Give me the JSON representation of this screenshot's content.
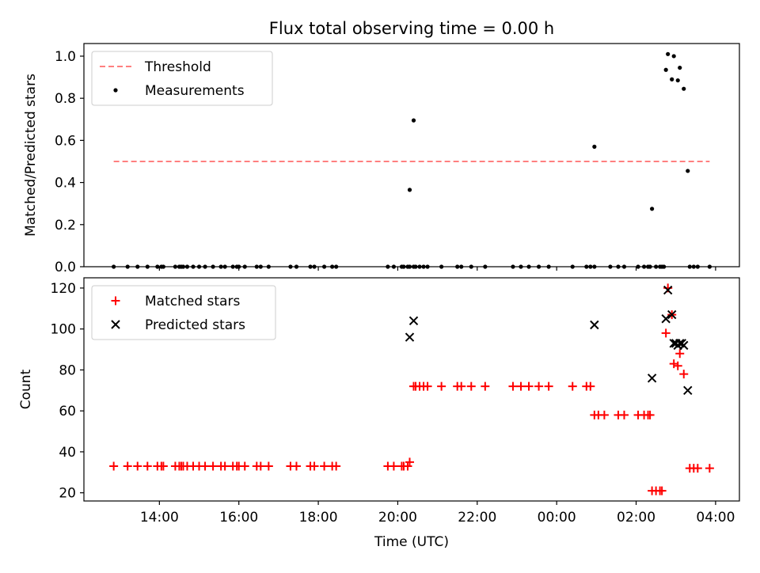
{
  "figure": {
    "title": "Flux total observing time = 0.00 h"
  },
  "chart_data": [
    {
      "type": "scatter",
      "xlabel": "",
      "ylabel": "Matched/Predicted stars",
      "x_unit": "hours since 00:00 UTC of first day",
      "xlim": [
        12.1,
        28.6
      ],
      "ylim": [
        0,
        1.06
      ],
      "yticks": [
        0,
        0.2,
        0.4,
        0.6,
        0.8,
        1.0
      ],
      "ytick_labels": [
        "0.0",
        "0.2",
        "0.4",
        "0.6",
        "0.8",
        "1.0"
      ],
      "legend": {
        "position": "top-left",
        "entries": [
          "Threshold",
          "Measurements"
        ]
      },
      "threshold": {
        "name": "Threshold",
        "value": 0.5,
        "x_start": 12.85,
        "x_end": 27.85,
        "color": "#ff7f7f"
      },
      "series": [
        {
          "name": "Measurements",
          "marker": "dot",
          "color": "#000000",
          "x": [
            12.85,
            13.2,
            13.45,
            13.7,
            13.95,
            14.05,
            14.1,
            14.4,
            14.5,
            14.55,
            14.6,
            14.7,
            14.85,
            15.0,
            15.15,
            15.35,
            15.55,
            15.65,
            15.85,
            15.95,
            16.0,
            16.15,
            16.45,
            16.55,
            16.75,
            17.3,
            17.45,
            17.8,
            17.9,
            18.15,
            18.35,
            18.45,
            19.75,
            19.9,
            20.1,
            20.15,
            20.25,
            20.3,
            20.4,
            20.45,
            20.55,
            20.65,
            20.75,
            21.1,
            21.5,
            21.6,
            21.85,
            22.2,
            22.9,
            23.1,
            23.3,
            23.55,
            23.8,
            24.4,
            24.75,
            24.85,
            24.95,
            25.35,
            25.55,
            25.7,
            26.05,
            26.2,
            26.3,
            26.35,
            26.5,
            26.6,
            26.65,
            26.7,
            27.35,
            27.45,
            27.55,
            27.85,
            20.3,
            20.4,
            24.95,
            26.4,
            26.75,
            26.8,
            26.9,
            26.95,
            27.05,
            27.1,
            27.2,
            27.3
          ],
          "y": [
            0,
            0,
            0,
            0,
            0,
            0,
            0,
            0,
            0,
            0,
            0,
            0,
            0,
            0,
            0,
            0,
            0,
            0,
            0,
            0,
            0,
            0,
            0,
            0,
            0,
            0,
            0,
            0,
            0,
            0,
            0,
            0,
            0,
            0,
            0,
            0,
            0,
            0,
            0,
            0,
            0,
            0,
            0,
            0,
            0,
            0,
            0,
            0,
            0,
            0,
            0,
            0,
            0,
            0,
            0,
            0,
            0,
            0,
            0,
            0,
            0,
            0,
            0,
            0,
            0,
            0,
            0,
            0,
            0,
            0,
            0,
            0,
            0.365,
            0.695,
            0.57,
            0.275,
            0.935,
            1.01,
            0.89,
            1.0,
            0.885,
            0.945,
            0.845,
            0.455
          ]
        }
      ]
    },
    {
      "type": "scatter",
      "xlabel": "Time (UTC)",
      "ylabel": "Count",
      "x_unit": "hours since 00:00 UTC of first day",
      "xlim": [
        12.1,
        28.6
      ],
      "ylim": [
        16,
        125
      ],
      "xticks": [
        14,
        16,
        18,
        20,
        22,
        24,
        26,
        28
      ],
      "xtick_labels": [
        "14:00",
        "16:00",
        "18:00",
        "20:00",
        "22:00",
        "00:00",
        "02:00",
        "04:00"
      ],
      "yticks": [
        20,
        40,
        60,
        80,
        100,
        120
      ],
      "ytick_labels": [
        "20",
        "40",
        "60",
        "80",
        "100",
        "120"
      ],
      "legend": {
        "position": "top-left",
        "entries": [
          "Matched stars",
          "Predicted stars"
        ]
      },
      "series": [
        {
          "name": "Matched stars",
          "marker": "plus",
          "color": "#ff0000",
          "x": [
            12.85,
            13.2,
            13.45,
            13.7,
            13.95,
            14.05,
            14.1,
            14.4,
            14.5,
            14.55,
            14.6,
            14.7,
            14.85,
            15.0,
            15.15,
            15.35,
            15.55,
            15.65,
            15.85,
            15.95,
            16.0,
            16.15,
            16.45,
            16.55,
            16.75,
            17.3,
            17.45,
            17.8,
            17.9,
            18.15,
            18.35,
            18.45,
            19.75,
            19.9,
            20.1,
            20.15,
            20.25,
            20.3,
            20.4,
            20.45,
            20.55,
            20.65,
            20.75,
            21.1,
            21.5,
            21.6,
            21.85,
            22.2,
            22.9,
            23.1,
            23.3,
            23.55,
            23.8,
            24.4,
            24.75,
            24.85,
            24.95,
            25.05,
            25.2,
            25.55,
            25.7,
            26.05,
            26.2,
            26.3,
            26.35,
            26.4,
            26.5,
            26.6,
            26.65,
            26.75,
            26.8,
            26.9,
            26.95,
            27.05,
            27.1,
            27.2,
            27.35,
            27.45,
            27.55,
            27.85
          ],
          "y": [
            33,
            33,
            33,
            33,
            33,
            33,
            33,
            33,
            33,
            33,
            33,
            33,
            33,
            33,
            33,
            33,
            33,
            33,
            33,
            33,
            33,
            33,
            33,
            33,
            33,
            33,
            33,
            33,
            33,
            33,
            33,
            33,
            33,
            33,
            33,
            33,
            33,
            35,
            72,
            72,
            72,
            72,
            72,
            72,
            72,
            72,
            72,
            72,
            72,
            72,
            72,
            72,
            72,
            72,
            72,
            72,
            58,
            58,
            58,
            58,
            58,
            58,
            58,
            58,
            58,
            21,
            21,
            21,
            21,
            98,
            120,
            107,
            83,
            82,
            88,
            78,
            32,
            32,
            32,
            32
          ]
        },
        {
          "name": "Predicted stars",
          "marker": "x",
          "color": "#000000",
          "x": [
            20.3,
            20.4,
            24.95,
            26.4,
            26.75,
            26.8,
            26.9,
            26.95,
            27.0,
            27.05,
            27.1,
            27.15,
            27.2,
            27.3
          ],
          "y": [
            96,
            104,
            102,
            76,
            105,
            119,
            107,
            93,
            93,
            92,
            93,
            93,
            92,
            70
          ]
        }
      ]
    }
  ]
}
